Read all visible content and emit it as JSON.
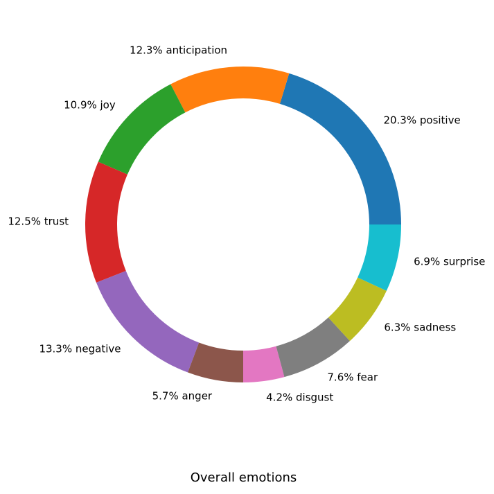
{
  "chart_data": {
    "type": "pie",
    "variant": "donut",
    "title": "Overall emotions",
    "start_angle_deg": 0,
    "direction": "counterclockwise",
    "slices": [
      {
        "label": "20.3% positive",
        "name": "positive",
        "value": 20.3,
        "color": "#1f77b4"
      },
      {
        "label": "12.3% anticipation",
        "name": "anticipation",
        "value": 12.3,
        "color": "#ff7f0e"
      },
      {
        "label": "10.9% joy",
        "name": "joy",
        "value": 10.9,
        "color": "#2ca02c"
      },
      {
        "label": "12.5% trust",
        "name": "trust",
        "value": 12.5,
        "color": "#d62728"
      },
      {
        "label": "13.3% negative",
        "name": "negative",
        "value": 13.3,
        "color": "#9467bd"
      },
      {
        "label": "5.7% anger",
        "name": "anger",
        "value": 5.7,
        "color": "#8c564b"
      },
      {
        "label": "4.2% disgust",
        "name": "disgust",
        "value": 4.2,
        "color": "#e377c2"
      },
      {
        "label": "7.6% fear",
        "name": "fear",
        "value": 7.6,
        "color": "#7f7f7f"
      },
      {
        "label": "6.3% sadness",
        "name": "sadness",
        "value": 6.3,
        "color": "#bcbd22"
      },
      {
        "label": "6.9% surprise",
        "name": "surprise",
        "value": 6.9,
        "color": "#17becf"
      }
    ]
  }
}
